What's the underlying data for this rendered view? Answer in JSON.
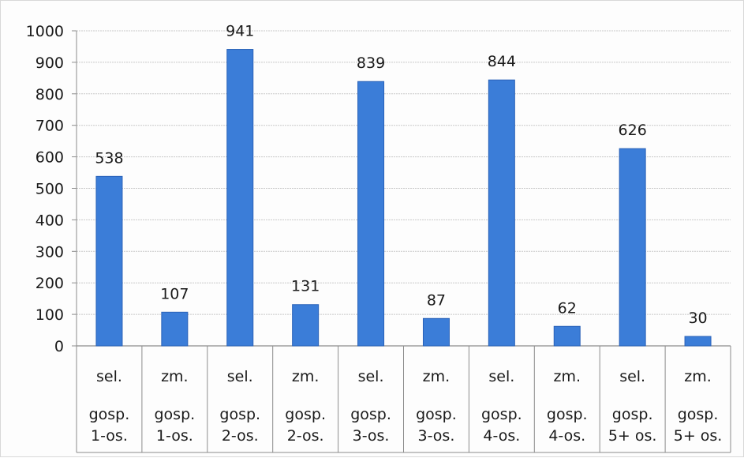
{
  "chart_data": {
    "type": "bar",
    "categories": [
      [
        "sel.",
        "gosp.",
        "1-os."
      ],
      [
        "zm.",
        "gosp.",
        "1-os."
      ],
      [
        "sel.",
        "gosp.",
        "2-os."
      ],
      [
        "zm.",
        "gosp.",
        "2-os."
      ],
      [
        "sel.",
        "gosp.",
        "3-os."
      ],
      [
        "zm.",
        "gosp.",
        "3-os."
      ],
      [
        "sel.",
        "gosp.",
        "4-os."
      ],
      [
        "zm.",
        "gosp.",
        "4-os."
      ],
      [
        "sel.",
        "gosp.",
        "5+ os."
      ],
      [
        "zm.",
        "gosp.",
        "5+ os."
      ]
    ],
    "values": [
      538,
      107,
      941,
      131,
      839,
      87,
      844,
      62,
      626,
      30
    ],
    "data_labels": [
      "538",
      "107",
      "941",
      "131",
      "839",
      "87",
      "844",
      "62",
      "626",
      "30"
    ],
    "ylim": [
      0,
      1000
    ],
    "yticks": [
      0,
      100,
      200,
      300,
      400,
      500,
      600,
      700,
      800,
      900,
      1000
    ],
    "grid": true,
    "legend": false,
    "bar_color": "#3b7dd8",
    "bar_edge_color": "#2a62b8"
  }
}
